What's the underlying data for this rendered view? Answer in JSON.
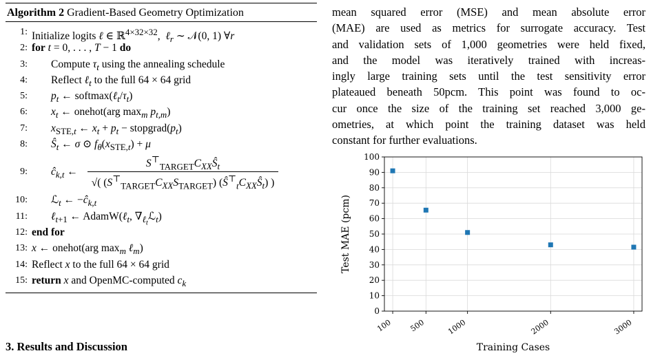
{
  "algorithm": {
    "label": "Algorithm 2",
    "title": "Gradient-Based Geometry Optimization",
    "lines": [
      {
        "n": "1:",
        "html": "Initialize logits <i>ℓ</i> ∈ ℝ<sup>4×32×32</sup>,&nbsp; <i>ℓ<sub>r</sub></i> ∼ 𝒩(0, 1) ∀<i>r</i>"
      },
      {
        "n": "2:",
        "html": "<b>for</b> <i>t</i> = 0, . . . , <i>T</i> − 1 <b>do</b>"
      },
      {
        "n": "3:",
        "indent": true,
        "html": "Compute <i>τ<sub>t</sub></i> using the annealing schedule"
      },
      {
        "n": "4:",
        "indent": true,
        "html": "Reflect <i>ℓ<sub>t</sub></i> to the full 64 × 64 grid"
      },
      {
        "n": "5:",
        "indent": true,
        "html": "<i>p<sub>t</sub></i> ← softmax(<i>ℓ<sub>t</sub></i>/<i>τ<sub>t</sub></i>)"
      },
      {
        "n": "6:",
        "indent": true,
        "html": "<i>x<sub>t</sub></i> ← onehot(arg max<sub><i>m</i></sub> <i>p<sub>t,m</sub></i>)"
      },
      {
        "n": "7:",
        "indent": true,
        "html": "<i>x</i><sub>STE,<i>t</i></sub> ← <i>x<sub>t</sub></i> + <i>p<sub>t</sub></i> − stopgrad(<i>p<sub>t</sub></i>)"
      },
      {
        "n": "8:",
        "indent": true,
        "html": "<i>Ŝ<sub>t</sub></i> ← <i>σ</i> ⊙ <i>f<sub>θ</sub></i>(<i>x</i><sub>STE,<i>t</i></sub>) + <i>μ</i>"
      },
      {
        "n": "9:",
        "indent": true,
        "tall": true,
        "html": "<i>ĉ<sub>k,t</sub></i> ← <span class=\"frac\"><span class=\"num\"><i>S</i><sup>⊤</sup><sub>TARGET</sub><i>C<sub>XX</sub></i><i>Ŝ<sub>t</sub></i></span><span class=\"den\">√( (<i>S</i><sup>⊤</sup><sub>TARGET</sub><i>C<sub>XX</sub>S</i><sub>TARGET</sub>) (<i>Ŝ</i><sup>⊤</sup><sub><i>t</i></sub><i>C<sub>XX</sub></i><i>Ŝ<sub>t</sub></i>) )</span></span>"
      },
      {
        "n": "10:",
        "indent": true,
        "html": "ℒ<sub><i>t</i></sub> ← −<i>ĉ<sub>k,t</sub></i>"
      },
      {
        "n": "11:",
        "indent": true,
        "html": "<i>ℓ</i><sub><i>t</i>+1</sub> ← AdamW(<i>ℓ<sub>t</sub></i>, ∇<sub><i>ℓ<sub>t</sub></i></sub>ℒ<sub><i>t</i></sub>)"
      },
      {
        "n": "12:",
        "html": "<b>end for</b>"
      },
      {
        "n": "13:",
        "html": "<i>x</i> ← onehot(arg max<sub><i>m</i></sub> <i>ℓ<sub>m</sub></i>)"
      },
      {
        "n": "14:",
        "html": "Reflect <i>x</i> to the full 64 × 64 grid"
      },
      {
        "n": "15:",
        "html": "<b>return</b> <i>x</i> and OpenMC-computed <i>c<sub>k</sub></i>"
      }
    ]
  },
  "section_heading": "3. Results and Discussion",
  "paragraph_lines": [
    "mean squared error (MSE) and mean absolute error",
    "(MAE) are used as metrics for surrogate accuracy. Test",
    "and validation sets of 1,000 geometries were held fixed,",
    "and the model was iteratively trained with increas-",
    "ingly large training sets until the test sensitivity error",
    "plateaued beneath 50pcm. This point was found to oc-",
    "cur once the size of the training set reached 3,000 ge-",
    "ometries, at which point the training dataset was held",
    "constant for further evaluations."
  ],
  "chart_data": {
    "type": "scatter",
    "x": [
      100,
      500,
      1000,
      2000,
      3000
    ],
    "y": [
      91,
      65.5,
      51,
      43,
      41.5
    ],
    "xticks": [
      "100",
      "500",
      "1000",
      "2000",
      "3000"
    ],
    "yticks": [
      "0",
      "10",
      "20",
      "30",
      "40",
      "50",
      "60",
      "70",
      "80",
      "90",
      "100"
    ],
    "xlabel": "Training Cases",
    "ylabel": "Test MAE (pcm)",
    "xlim": [
      0,
      3100
    ],
    "ylim": [
      0,
      100
    ],
    "grid": true,
    "marker_color": "#1f77b4"
  }
}
